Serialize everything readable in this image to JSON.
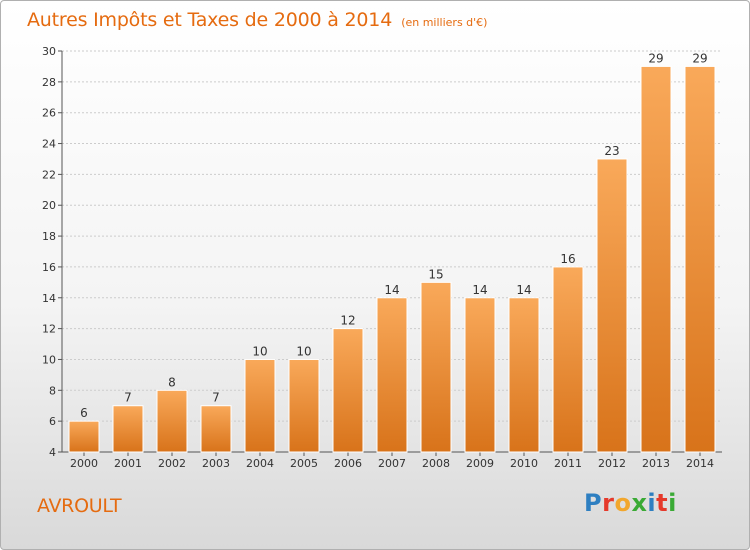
{
  "header": {
    "title": "Autres Impôts et Taxes de 2000 à 2014",
    "subtitle": "(en milliers d'€)"
  },
  "footer": {
    "commune": "AVROULT",
    "logo_text": "Proxiti",
    "logo_colors": [
      "#2e7fc1",
      "#e5392b",
      "#f2a72d",
      "#3aaa35",
      "#2e7fc1",
      "#e5392b",
      "#3aaa35"
    ]
  },
  "colors": {
    "accent": "#e56b10",
    "bar_light": "#f9a95a",
    "bar_dark": "#d8731a",
    "grid": "#cccccc"
  },
  "chart_data": {
    "type": "bar",
    "title": "Autres Impôts et Taxes de 2000 à 2014",
    "subtitle": "(en milliers d'€)",
    "xlabel": "",
    "ylabel": "",
    "categories": [
      "2000",
      "2001",
      "2002",
      "2003",
      "2004",
      "2005",
      "2006",
      "2007",
      "2008",
      "2009",
      "2010",
      "2011",
      "2012",
      "2013",
      "2014"
    ],
    "values": [
      6,
      7,
      8,
      7,
      10,
      10,
      12,
      14,
      15,
      14,
      14,
      16,
      23,
      29,
      29
    ],
    "ylim": [
      4,
      30
    ],
    "yticks": [
      4,
      6,
      8,
      10,
      12,
      14,
      16,
      18,
      20,
      22,
      24,
      26,
      28,
      30
    ],
    "grid": true,
    "legend": "none"
  }
}
